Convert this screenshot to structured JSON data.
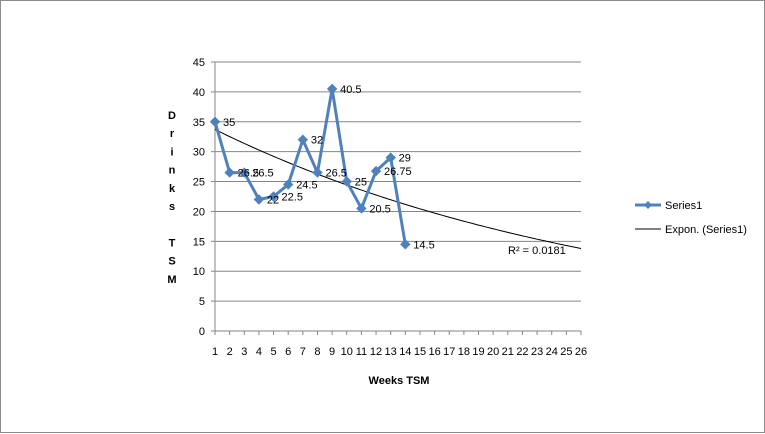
{
  "chart_data": {
    "type": "line",
    "title": "",
    "xlabel": "Weeks TSM",
    "ylabel": "Drinks TSM",
    "ylabel_lines": [
      "D",
      "r",
      "i",
      "n",
      "k",
      "s",
      "",
      "T",
      "S",
      "M"
    ],
    "xlim": [
      1,
      26
    ],
    "ylim": [
      0,
      45
    ],
    "ytick_step": 5,
    "xticks": [
      1,
      2,
      3,
      4,
      5,
      6,
      7,
      8,
      9,
      10,
      11,
      12,
      13,
      14,
      15,
      16,
      17,
      18,
      19,
      20,
      21,
      22,
      23,
      24,
      25,
      26
    ],
    "grid": true,
    "series": [
      {
        "name": "Series1",
        "color": "#4f81bd",
        "x": [
          1,
          2,
          3,
          4,
          5,
          6,
          7,
          8,
          9,
          10,
          11,
          12,
          13,
          14
        ],
        "values": [
          35,
          26.5,
          26.5,
          22,
          22.5,
          24.5,
          32,
          26.5,
          40.5,
          25,
          20.5,
          26.75,
          29,
          14.5
        ],
        "labels": [
          "35",
          "26.5",
          "26.5",
          "22",
          "22.5",
          "24.5",
          "32",
          "26.5",
          "40.5",
          "25",
          "20.5",
          "26.75",
          "29",
          "14.5"
        ]
      }
    ],
    "trendline": {
      "name": "Expon. (Series1)",
      "type": "exponential",
      "start_value": 33.7,
      "end_value": 13.8,
      "color": "#000000",
      "r2_label": "R² = 0.0181"
    },
    "legend": "right"
  }
}
